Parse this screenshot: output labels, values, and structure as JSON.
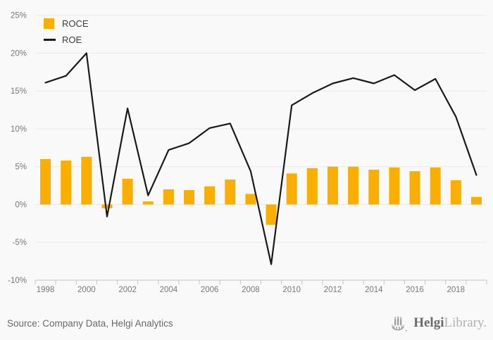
{
  "chart_data": {
    "type": "bar",
    "title": "",
    "categories": [
      "1998",
      "1999",
      "2000",
      "2001",
      "2002",
      "2003",
      "2004",
      "2005",
      "2006",
      "2007",
      "2008",
      "2009",
      "2010",
      "2011",
      "2012",
      "2013",
      "2014",
      "2015",
      "2016",
      "2017",
      "2018",
      "2019"
    ],
    "series": [
      {
        "name": "ROCE",
        "chart_type": "bar",
        "color": "#F9AE00",
        "values": [
          6.0,
          5.8,
          6.3,
          -0.5,
          3.4,
          0.4,
          2.0,
          1.9,
          2.4,
          3.3,
          1.4,
          -2.7,
          4.1,
          4.8,
          5.0,
          5.0,
          4.6,
          4.9,
          4.4,
          4.9,
          3.2,
          1.0
        ]
      },
      {
        "name": "ROE",
        "chart_type": "line",
        "color": "#1a1a1a",
        "values": [
          16.1,
          17.0,
          20.0,
          -1.6,
          12.7,
          1.2,
          7.2,
          8.1,
          10.1,
          10.7,
          4.4,
          -7.9,
          13.1,
          14.7,
          16.0,
          16.7,
          16.0,
          17.1,
          15.1,
          16.6,
          11.6,
          3.9
        ]
      }
    ],
    "ylim": [
      -10,
      25
    ],
    "yticks": [
      25,
      20,
      15,
      10,
      5,
      0,
      -5,
      -10
    ],
    "ytick_suffix": "%",
    "xtick_label_every": 2,
    "grid": true,
    "legend_position": "top-left",
    "colors": {
      "grid": "#e9e9e9",
      "axis": "#c4c4c7",
      "tick_label": "#77787b",
      "background": "#f9f9f9"
    }
  },
  "footer": {
    "source": "Source: Company Data, Helgi Analytics"
  },
  "branding": {
    "bold": "Helgi",
    "light": "Library."
  }
}
